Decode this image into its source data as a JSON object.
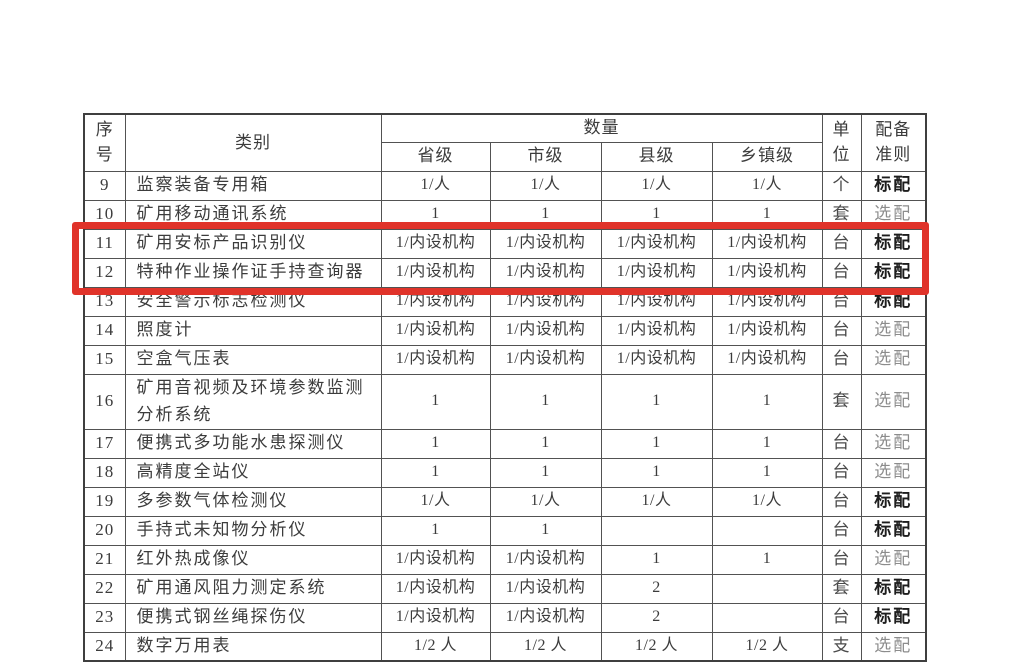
{
  "table": {
    "header": {
      "seq_lines": [
        "序",
        "号"
      ],
      "category": "类别",
      "quantity": "数量",
      "levels": [
        "省级",
        "市级",
        "县级",
        "乡镇级"
      ],
      "unit_lines": [
        "单",
        "位"
      ],
      "criteria_lines": [
        "配备",
        "准则"
      ]
    },
    "rows": [
      {
        "no": "9",
        "category": "监察装备专用箱",
        "values": [
          "1/人",
          "1/人",
          "1/人",
          "1/人"
        ],
        "unit": "个",
        "criteria": "标配",
        "criteria_type": "standard"
      },
      {
        "no": "10",
        "category": "矿用移动通讯系统",
        "values": [
          "1",
          "1",
          "1",
          "1"
        ],
        "unit": "套",
        "criteria": "选配",
        "criteria_type": "optional"
      },
      {
        "no": "11",
        "category": "矿用安标产品识别仪",
        "values": [
          "1/内设机构",
          "1/内设机构",
          "1/内设机构",
          "1/内设机构"
        ],
        "unit": "台",
        "criteria": "标配",
        "criteria_type": "standard"
      },
      {
        "no": "12",
        "category": "特种作业操作证手持查询器",
        "values": [
          "1/内设机构",
          "1/内设机构",
          "1/内设机构",
          "1/内设机构"
        ],
        "unit": "台",
        "criteria": "标配",
        "criteria_type": "standard"
      },
      {
        "no": "13",
        "category": "安全警示标志检测仪",
        "values": [
          "1/内设机构",
          "1/内设机构",
          "1/内设机构",
          "1/内设机构"
        ],
        "unit": "台",
        "criteria": "标配",
        "criteria_type": "standard"
      },
      {
        "no": "14",
        "category": "照度计",
        "values": [
          "1/内设机构",
          "1/内设机构",
          "1/内设机构",
          "1/内设机构"
        ],
        "unit": "台",
        "criteria": "选配",
        "criteria_type": "optional"
      },
      {
        "no": "15",
        "category": "空盒气压表",
        "values": [
          "1/内设机构",
          "1/内设机构",
          "1/内设机构",
          "1/内设机构"
        ],
        "unit": "台",
        "criteria": "选配",
        "criteria_type": "optional"
      },
      {
        "no": "16",
        "category": "矿用音视频及环境参数监测分析系统",
        "values": [
          "1",
          "1",
          "1",
          "1"
        ],
        "unit": "套",
        "criteria": "选配",
        "criteria_type": "optional",
        "tall": true
      },
      {
        "no": "17",
        "category": "便携式多功能水患探测仪",
        "values": [
          "1",
          "1",
          "1",
          "1"
        ],
        "unit": "台",
        "criteria": "选配",
        "criteria_type": "optional"
      },
      {
        "no": "18",
        "category": "高精度全站仪",
        "values": [
          "1",
          "1",
          "1",
          "1"
        ],
        "unit": "台",
        "criteria": "选配",
        "criteria_type": "optional"
      },
      {
        "no": "19",
        "category": "多参数气体检测仪",
        "values": [
          "1/人",
          "1/人",
          "1/人",
          "1/人"
        ],
        "unit": "台",
        "criteria": "标配",
        "criteria_type": "standard"
      },
      {
        "no": "20",
        "category": "手持式未知物分析仪",
        "values": [
          "1",
          "1",
          "",
          ""
        ],
        "unit": "台",
        "criteria": "标配",
        "criteria_type": "standard"
      },
      {
        "no": "21",
        "category": "红外热成像仪",
        "values": [
          "1/内设机构",
          "1/内设机构",
          "1",
          "1"
        ],
        "unit": "台",
        "criteria": "选配",
        "criteria_type": "optional"
      },
      {
        "no": "22",
        "category": "矿用通风阻力测定系统",
        "values": [
          "1/内设机构",
          "1/内设机构",
          "2",
          ""
        ],
        "unit": "套",
        "criteria": "标配",
        "criteria_type": "standard"
      },
      {
        "no": "23",
        "category": "便携式钢丝绳探伤仪",
        "values": [
          "1/内设机构",
          "1/内设机构",
          "2",
          ""
        ],
        "unit": "台",
        "criteria": "标配",
        "criteria_type": "standard"
      },
      {
        "no": "24",
        "category": "数字万用表",
        "values": [
          "1/2 人",
          "1/2 人",
          "1/2 人",
          "1/2 人"
        ],
        "unit": "支",
        "criteria": "选配",
        "criteria_type": "optional"
      }
    ]
  },
  "highlight": {
    "color": "#e0332a",
    "rows": [
      "11",
      "12"
    ]
  }
}
